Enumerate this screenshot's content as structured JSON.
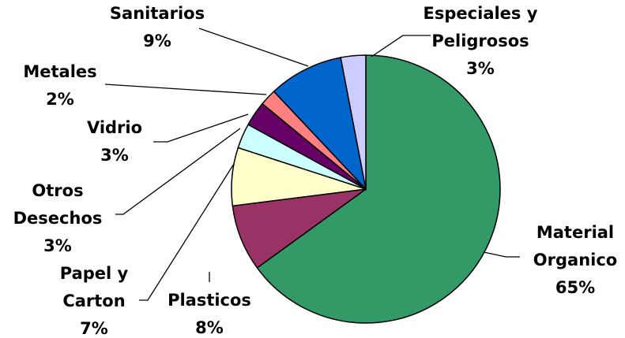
{
  "chart_data": {
    "type": "pie",
    "categories": [
      "Material Organico",
      "Plasticos",
      "Papel y Carton",
      "Otros Desechos",
      "Vidrio",
      "Metales",
      "Sanitarios",
      "Especiales y Peligrosos"
    ],
    "values": [
      65,
      8,
      7,
      3,
      3,
      2,
      9,
      3
    ],
    "value_labels": [
      "65%",
      "8%",
      "7%",
      "3%",
      "3%",
      "2%",
      "9%",
      "3%"
    ],
    "colors": [
      "#339966",
      "#993366",
      "#ffffcc",
      "#ccffff",
      "#660066",
      "#ff8080",
      "#0066cc",
      "#ccccff"
    ]
  }
}
